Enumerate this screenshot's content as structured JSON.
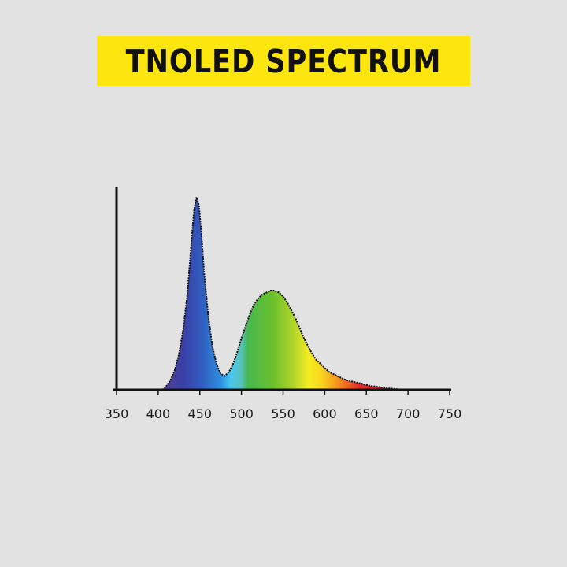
{
  "title": "TNOLED SPECTRUM",
  "colors": {
    "background": "#e1e2e1",
    "title_bg": "#fde510",
    "title_text": "#111111",
    "axis": "#111111"
  },
  "chart_data": {
    "type": "area",
    "title": "TNOLED SPECTRUM",
    "xlabel": "",
    "ylabel": "",
    "xlim": [
      350,
      750
    ],
    "ylim": [
      0,
      1
    ],
    "x_ticks": [
      350,
      400,
      450,
      500,
      550,
      600,
      650,
      700,
      750
    ],
    "grid": false,
    "fill": "visible-spectrum gradient",
    "series": [
      {
        "x": [
          405,
          410,
          415,
          420,
          425,
          430,
          435,
          440,
          443,
          446,
          449,
          452,
          455,
          460,
          465,
          470,
          475,
          480,
          485,
          490,
          495,
          500,
          505,
          510,
          515,
          520,
          525,
          530,
          535,
          540,
          545,
          550,
          555,
          560,
          565,
          570,
          575,
          580,
          585,
          590,
          595,
          600,
          605,
          610,
          615,
          620,
          625,
          630,
          635,
          640,
          645,
          650,
          655,
          660,
          665,
          670,
          675,
          680,
          685,
          690,
          695,
          700
        ],
        "y": [
          0.0,
          0.02,
          0.05,
          0.1,
          0.18,
          0.3,
          0.48,
          0.75,
          0.9,
          0.97,
          0.93,
          0.78,
          0.6,
          0.38,
          0.22,
          0.13,
          0.08,
          0.07,
          0.09,
          0.13,
          0.19,
          0.26,
          0.32,
          0.38,
          0.43,
          0.46,
          0.48,
          0.49,
          0.5,
          0.5,
          0.49,
          0.47,
          0.44,
          0.4,
          0.36,
          0.31,
          0.26,
          0.22,
          0.18,
          0.15,
          0.13,
          0.11,
          0.09,
          0.08,
          0.07,
          0.06,
          0.05,
          0.045,
          0.04,
          0.035,
          0.03,
          0.025,
          0.02,
          0.017,
          0.014,
          0.011,
          0.008,
          0.006,
          0.004,
          0.002,
          0.001,
          0.0
        ]
      }
    ]
  }
}
